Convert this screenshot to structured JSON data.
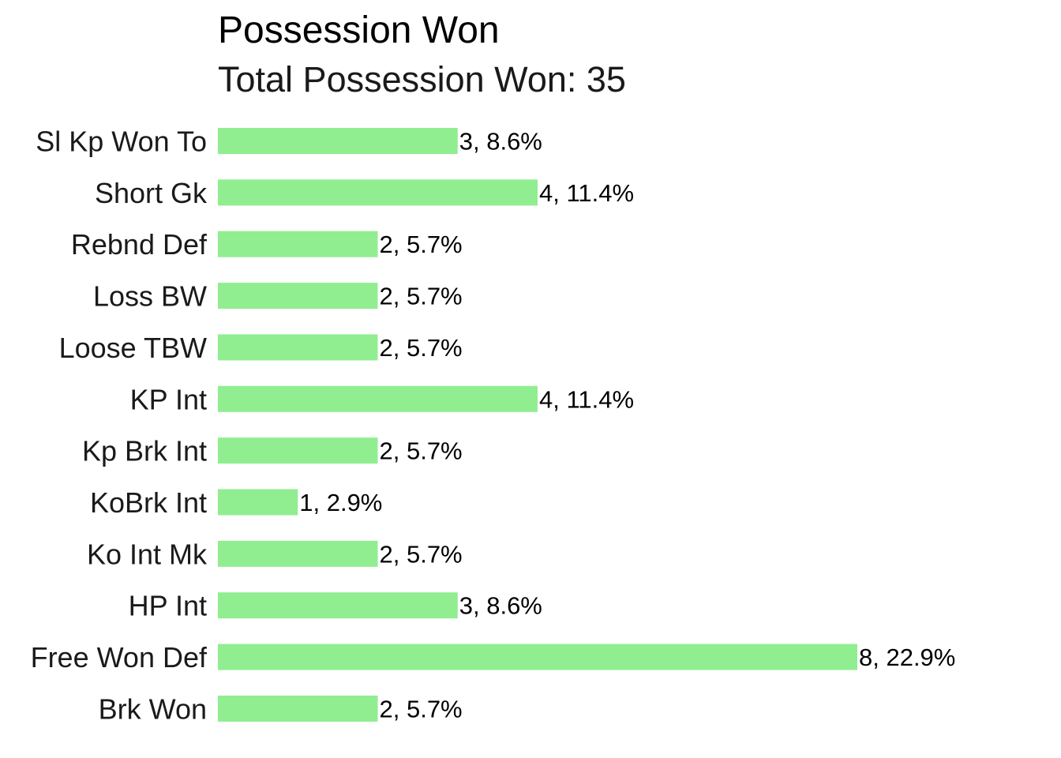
{
  "chart_data": {
    "type": "bar",
    "orientation": "horizontal",
    "title": "Possession Won",
    "subtitle": "Total Possession Won: 35",
    "xlabel": "",
    "ylabel": "",
    "grid": false,
    "bar_color": "#90EE90",
    "xlim": [
      0,
      8
    ],
    "categories": [
      "Sl Kp Won To",
      "Short Gk",
      "Rebnd Def",
      "Loss BW",
      "Loose TBW",
      "KP Int",
      "Kp Brk Int",
      "KoBrk Int",
      "Ko Int Mk",
      "HP Int",
      "Free Won Def",
      "Brk Won"
    ],
    "values": [
      3,
      4,
      2,
      2,
      2,
      4,
      2,
      1,
      2,
      3,
      8,
      2
    ],
    "data_labels": [
      "3, 8.6%",
      "4, 11.4%",
      "2, 5.7%",
      "2, 5.7%",
      "2, 5.7%",
      "4, 11.4%",
      "2, 5.7%",
      "1, 2.9%",
      "2, 5.7%",
      "3, 8.6%",
      "8, 22.9%",
      "2, 5.7%"
    ]
  }
}
